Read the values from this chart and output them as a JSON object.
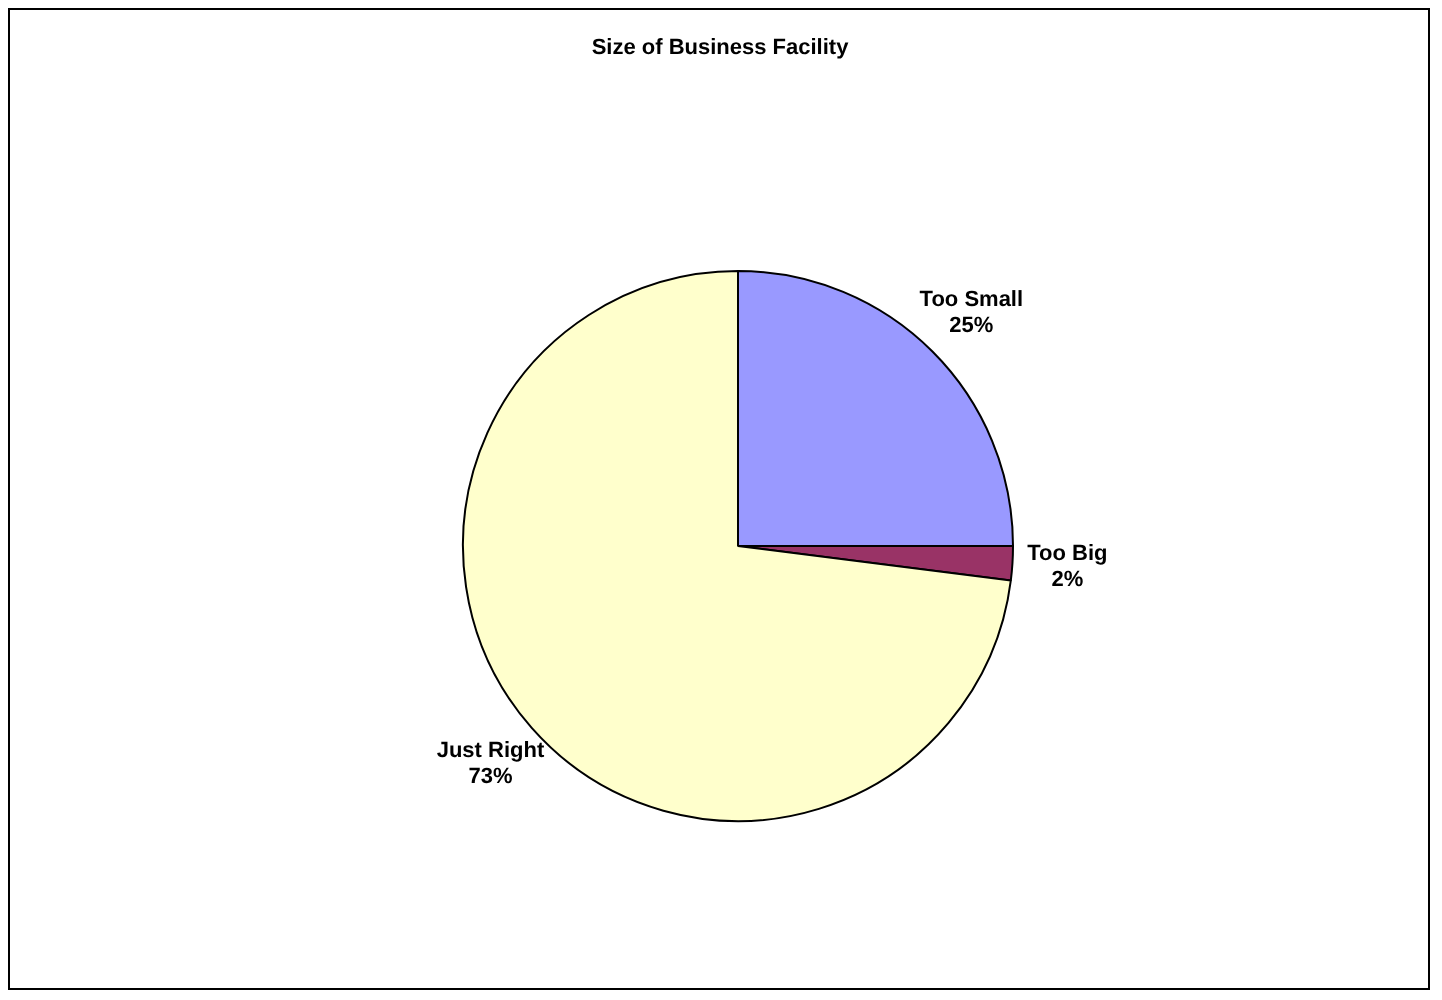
{
  "chart_data": {
    "type": "pie",
    "title": "Size of Business Facility",
    "categories": [
      "Too Small",
      "Too Big",
      "Just Right"
    ],
    "values": [
      25,
      2,
      73
    ],
    "colors": [
      "#9999ff",
      "#993366",
      "#ffffcc"
    ],
    "value_labels": [
      "25%",
      "2%",
      "73%"
    ],
    "legend": false
  }
}
